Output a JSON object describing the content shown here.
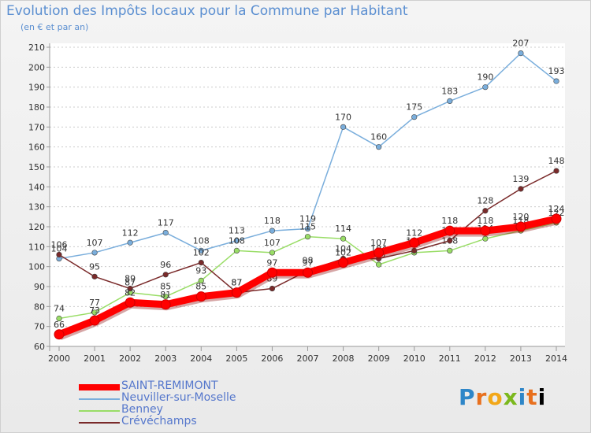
{
  "chart_data": {
    "type": "line",
    "title": "Evolution des Impôts locaux pour la Commune par Habitant",
    "subtitle": "(en € et par an)",
    "x": [
      "2000",
      "2001",
      "2002",
      "2003",
      "2004",
      "2005",
      "2006",
      "2007",
      "2008",
      "2009",
      "2010",
      "2011",
      "2012",
      "2013",
      "2014"
    ],
    "ylim": [
      60,
      210
    ],
    "yticks": [
      60,
      70,
      80,
      90,
      100,
      110,
      120,
      130,
      140,
      150,
      160,
      170,
      180,
      190,
      200,
      210
    ],
    "grid": "horizontal dashed",
    "series": [
      {
        "name": "SAINT-REMIMONT",
        "color": "#ff0000",
        "values": [
          66,
          73,
          82,
          81,
          85,
          87,
          97,
          97,
          102,
          107,
          112,
          118,
          118,
          120,
          124
        ]
      },
      {
        "name": "Neuviller-sur-Moselle",
        "color": "#7aaedc",
        "values": [
          104,
          107,
          112,
          117,
          108,
          113,
          118,
          119,
          170,
          160,
          175,
          183,
          190,
          207,
          193
        ]
      },
      {
        "name": "Benney",
        "color": "#99dd66",
        "values": [
          74,
          77,
          87,
          85,
          93,
          108,
          107,
          115,
          114,
          101,
          107,
          108,
          114,
          118,
          122
        ]
      },
      {
        "name": "Crévéchamps",
        "color": "#7a2a2a",
        "values": [
          106,
          95,
          89,
          96,
          102,
          87,
          89,
          98,
          104,
          104,
          108,
          113,
          128,
          139,
          148
        ]
      }
    ]
  },
  "logo": {
    "letters": [
      "P",
      "r",
      "o",
      "x",
      "i",
      "t",
      "i"
    ]
  }
}
